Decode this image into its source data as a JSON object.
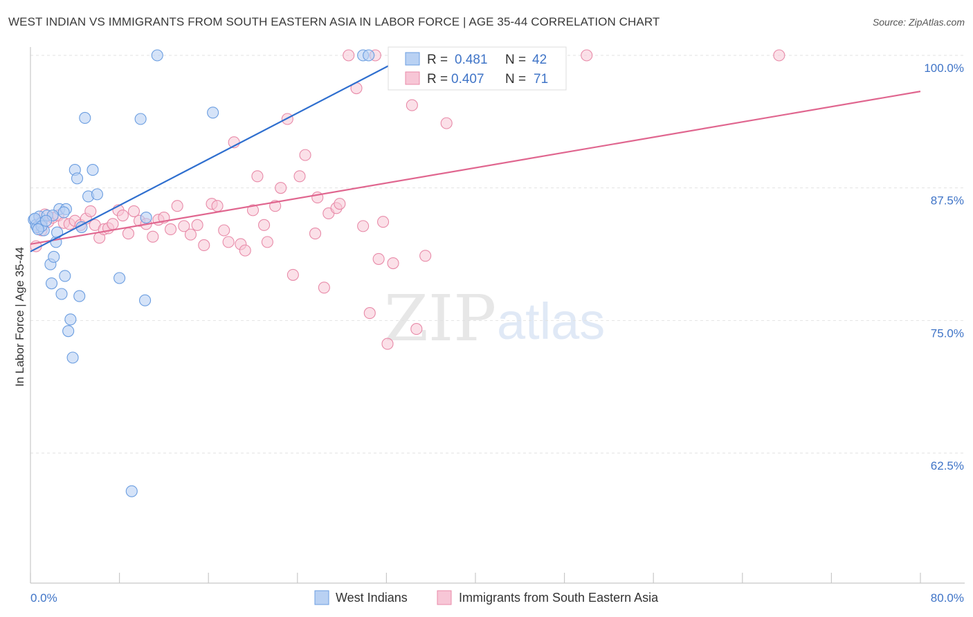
{
  "title": "WEST INDIAN VS IMMIGRANTS FROM SOUTH EASTERN ASIA IN LABOR FORCE | AGE 35-44 CORRELATION CHART",
  "source": "Source: ZipAtlas.com",
  "watermark": {
    "zip": "ZIP",
    "atlas": "atlas"
  },
  "chart_data": {
    "type": "scatter",
    "xlabel": "",
    "ylabel": "In Labor Force | Age 35-44",
    "xlim": [
      0,
      80
    ],
    "ylim": [
      50,
      101
    ],
    "x_tick_labels": [
      "0.0%",
      "80.0%"
    ],
    "y_ticks": [
      62.5,
      75.0,
      87.5,
      100.0
    ],
    "y_tick_labels": [
      "62.5%",
      "75.0%",
      "87.5%",
      "100.0%"
    ],
    "grid": true,
    "legend_position": "top-center",
    "series": [
      {
        "name": "West Indians",
        "color": "#6a9de0",
        "fill": "#b9d1f3",
        "R": "0.481",
        "N": "42",
        "trend": {
          "x": [
            0.0,
            34.0
          ],
          "y": [
            81.5,
            100.0
          ]
        },
        "points": [
          [
            0.3,
            84.5
          ],
          [
            0.5,
            84.0
          ],
          [
            0.6,
            83.8
          ],
          [
            0.8,
            84.8
          ],
          [
            1.0,
            84.2
          ],
          [
            1.2,
            83.5
          ],
          [
            1.5,
            84.9
          ],
          [
            1.8,
            80.3
          ],
          [
            1.9,
            78.5
          ],
          [
            2.1,
            81.0
          ],
          [
            2.3,
            82.4
          ],
          [
            2.4,
            83.3
          ],
          [
            2.6,
            85.5
          ],
          [
            2.8,
            77.5
          ],
          [
            3.1,
            79.2
          ],
          [
            3.2,
            85.5
          ],
          [
            3.4,
            74.0
          ],
          [
            3.6,
            75.1
          ],
          [
            3.8,
            71.5
          ],
          [
            4.0,
            89.2
          ],
          [
            4.2,
            88.4
          ],
          [
            4.4,
            77.3
          ],
          [
            4.6,
            83.8
          ],
          [
            4.9,
            94.1
          ],
          [
            5.2,
            86.7
          ],
          [
            5.6,
            89.2
          ],
          [
            6.0,
            86.9
          ],
          [
            8.0,
            79.0
          ],
          [
            9.1,
            58.9
          ],
          [
            9.9,
            94.0
          ],
          [
            10.3,
            76.9
          ],
          [
            10.4,
            84.7
          ],
          [
            11.4,
            100.0
          ],
          [
            16.4,
            94.6
          ],
          [
            29.9,
            100.0
          ],
          [
            30.4,
            100.0
          ],
          [
            0.4,
            84.6
          ],
          [
            1.0,
            83.9
          ],
          [
            2.0,
            84.9
          ],
          [
            3.0,
            85.2
          ],
          [
            0.7,
            83.6
          ],
          [
            1.4,
            84.4
          ]
        ]
      },
      {
        "name": "Immigrants from South Eastern Asia",
        "color": "#e88aa8",
        "fill": "#f7c6d6",
        "R": "0.407",
        "N": "71",
        "trend": {
          "x": [
            0.0,
            80.0
          ],
          "y": [
            82.2,
            96.6
          ]
        },
        "points": [
          [
            0.5,
            82.0
          ],
          [
            0.8,
            84.2
          ],
          [
            1.0,
            83.5
          ],
          [
            1.3,
            85.0
          ],
          [
            1.6,
            84.3
          ],
          [
            2.0,
            84.7
          ],
          [
            2.5,
            84.9
          ],
          [
            3.0,
            84.2
          ],
          [
            3.5,
            84.1
          ],
          [
            4.0,
            84.4
          ],
          [
            4.5,
            84.0
          ],
          [
            5.0,
            84.6
          ],
          [
            5.4,
            85.3
          ],
          [
            5.8,
            84.0
          ],
          [
            6.2,
            82.8
          ],
          [
            6.6,
            83.6
          ],
          [
            7.0,
            83.7
          ],
          [
            7.4,
            84.1
          ],
          [
            7.9,
            85.4
          ],
          [
            8.3,
            84.9
          ],
          [
            8.8,
            83.2
          ],
          [
            9.3,
            85.3
          ],
          [
            9.8,
            84.4
          ],
          [
            10.4,
            84.1
          ],
          [
            11.0,
            82.9
          ],
          [
            11.5,
            84.5
          ],
          [
            12.0,
            84.7
          ],
          [
            12.6,
            83.6
          ],
          [
            13.2,
            85.8
          ],
          [
            13.8,
            83.9
          ],
          [
            14.4,
            83.1
          ],
          [
            15.0,
            84.0
          ],
          [
            15.6,
            82.1
          ],
          [
            16.3,
            86.0
          ],
          [
            16.8,
            85.8
          ],
          [
            17.4,
            83.5
          ],
          [
            17.8,
            82.4
          ],
          [
            18.3,
            91.8
          ],
          [
            18.9,
            82.2
          ],
          [
            19.3,
            81.6
          ],
          [
            20.0,
            85.4
          ],
          [
            20.4,
            88.6
          ],
          [
            21.0,
            84.0
          ],
          [
            21.3,
            82.4
          ],
          [
            22.0,
            85.8
          ],
          [
            22.5,
            87.5
          ],
          [
            23.1,
            94.0
          ],
          [
            23.6,
            79.3
          ],
          [
            24.2,
            88.6
          ],
          [
            24.7,
            90.6
          ],
          [
            25.6,
            83.2
          ],
          [
            25.8,
            86.6
          ],
          [
            26.4,
            78.1
          ],
          [
            26.8,
            85.1
          ],
          [
            27.5,
            85.6
          ],
          [
            27.8,
            86.0
          ],
          [
            28.6,
            100.0
          ],
          [
            29.3,
            96.9
          ],
          [
            29.9,
            83.9
          ],
          [
            30.5,
            75.7
          ],
          [
            31.0,
            100.0
          ],
          [
            31.3,
            80.8
          ],
          [
            31.7,
            84.3
          ],
          [
            32.1,
            72.8
          ],
          [
            32.6,
            80.4
          ],
          [
            34.3,
            95.3
          ],
          [
            34.7,
            74.2
          ],
          [
            35.5,
            81.1
          ],
          [
            37.4,
            93.6
          ],
          [
            50.0,
            100.0
          ],
          [
            67.3,
            100.0
          ]
        ]
      }
    ]
  }
}
